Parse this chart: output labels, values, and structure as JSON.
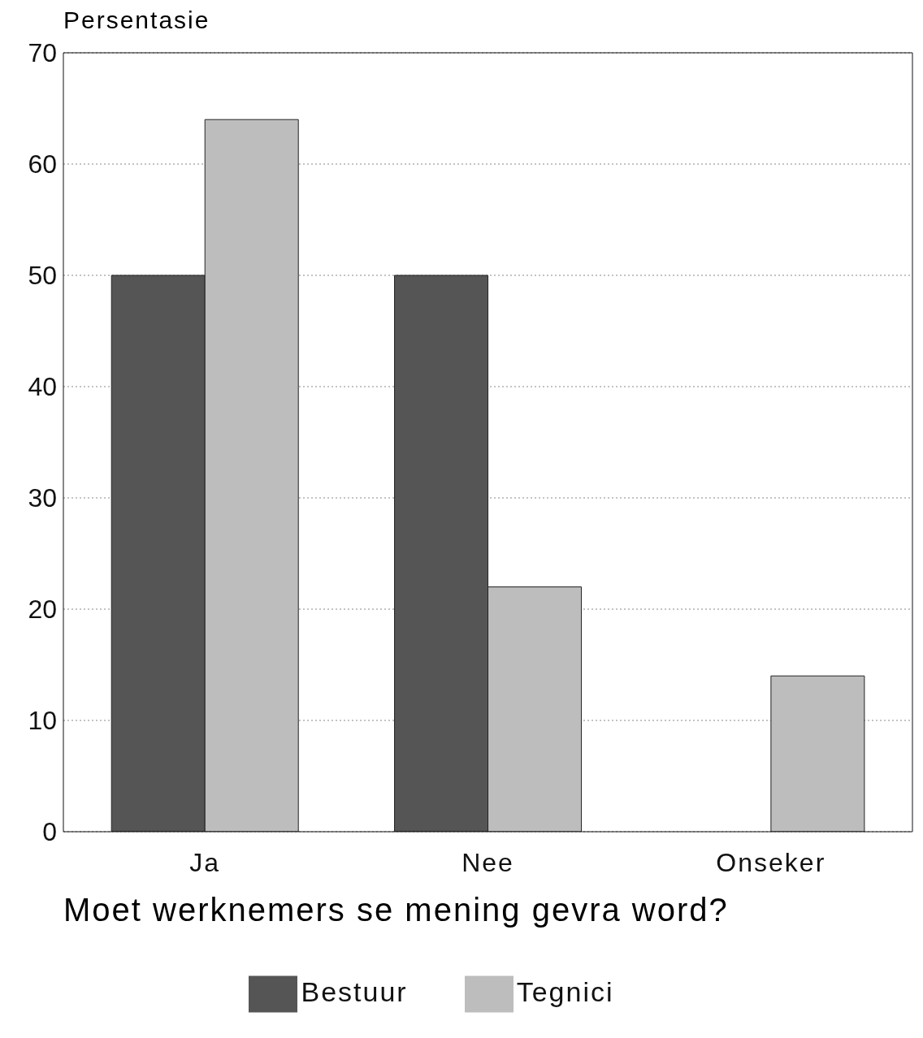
{
  "chart_data": {
    "type": "bar",
    "ylabel": "Persentasie",
    "xlabel": "Moet werknemers se mening gevra word?",
    "categories": [
      "Ja",
      "Nee",
      "Onseker"
    ],
    "series": [
      {
        "name": "Bestuur",
        "color": "#555555",
        "values": [
          50,
          50,
          0
        ]
      },
      {
        "name": "Tegnici",
        "color": "#bdbdbd",
        "values": [
          64,
          22,
          14
        ]
      }
    ],
    "ylim": [
      0,
      70
    ],
    "yticks": [
      0,
      10,
      20,
      30,
      40,
      50,
      60,
      70
    ],
    "grid": "y",
    "legend": "bottom"
  }
}
